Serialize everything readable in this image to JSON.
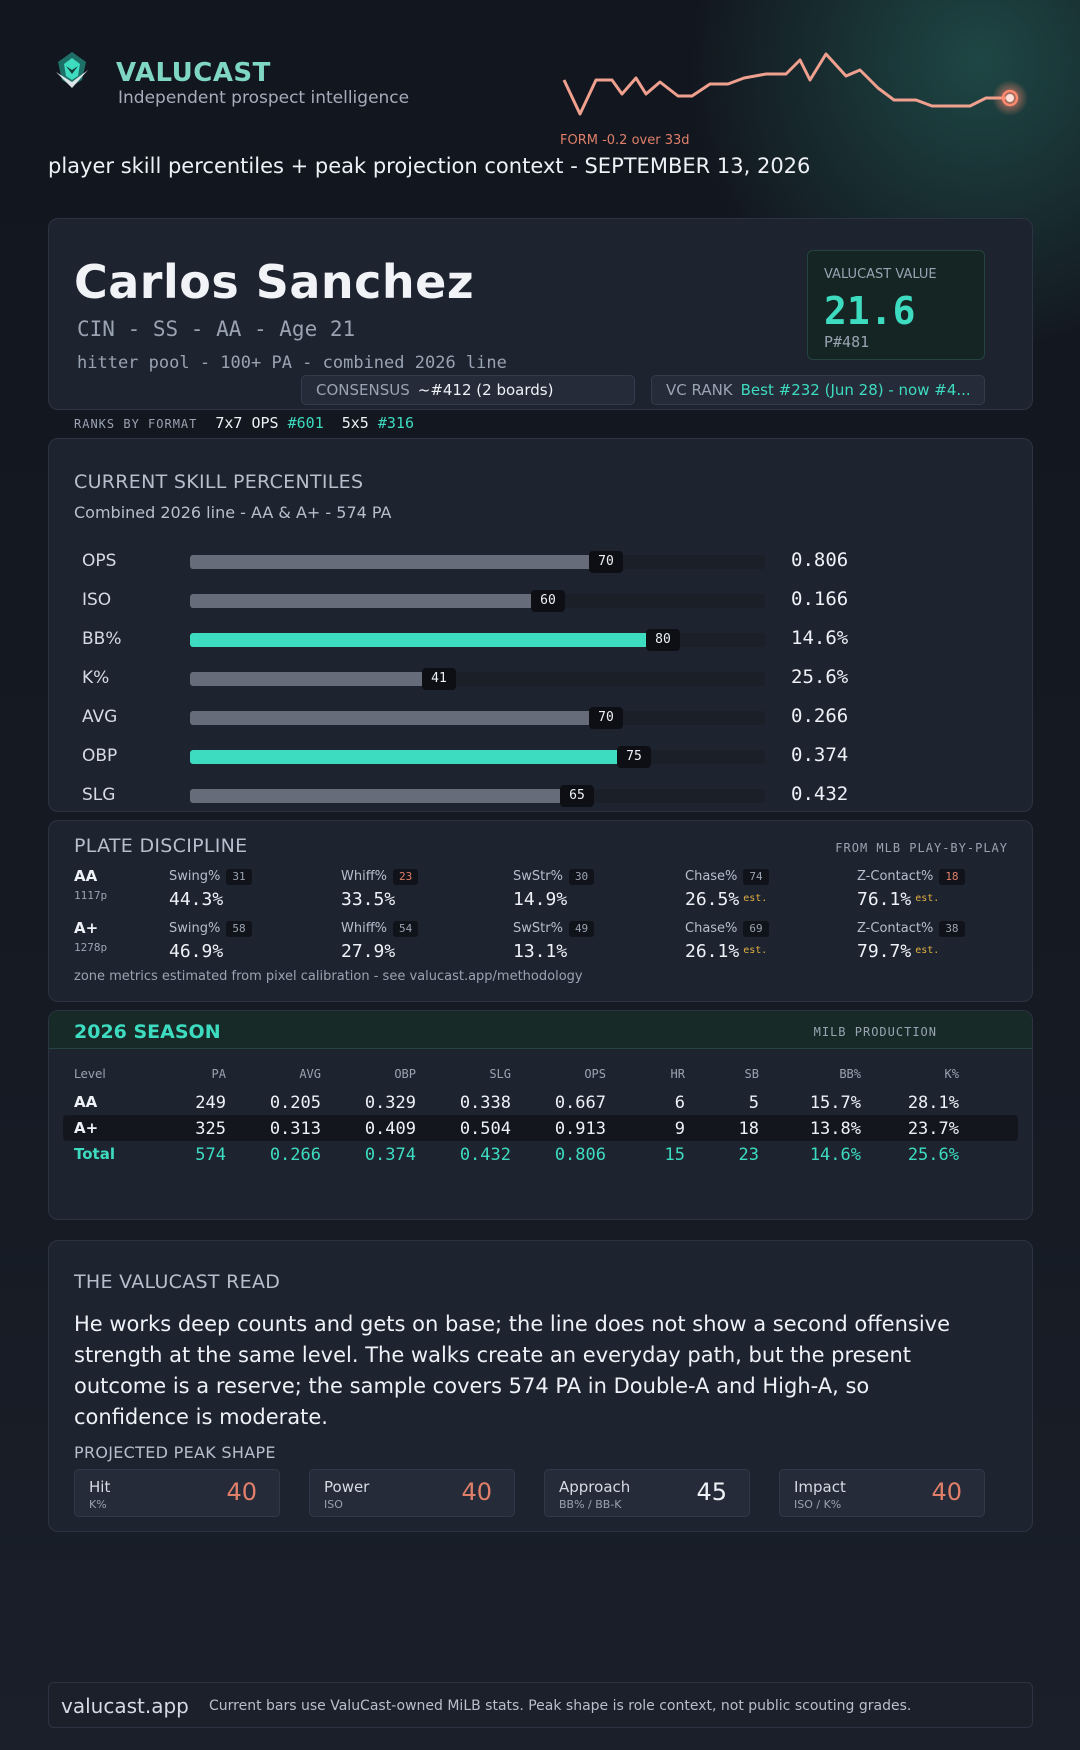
{
  "colors": {
    "accent": "#3ddcc0",
    "warn": "#e07f6a",
    "est": "#e0b040",
    "bar_neutral": "#666c7a"
  },
  "header": {
    "brand": "VALUCAST",
    "tagline": "Independent prospect intelligence",
    "form_label": "FORM  -0.2 over 33d",
    "subtitle": "player skill percentiles + peak projection context - SEPTEMBER 13, 2026"
  },
  "player": {
    "name": "Carlos Sanchez",
    "meta": "CIN - SS - AA - Age 21",
    "pool": "hitter pool - 100+ PA - combined 2026 line",
    "value_label": "VALUCAST VALUE",
    "value": "21.6",
    "value_rank": "P#481",
    "consensus_label": "CONSENSUS",
    "consensus_value": "~#412 (2 boards)",
    "vcrank_label": "VC RANK",
    "vcrank_value": "Best #232 (Jun 28) - now #4..."
  },
  "ranks": {
    "label": "RANKS BY FORMAT",
    "f1_label": "7x7 OPS",
    "f1_value": "#601",
    "f2_label": "5x5",
    "f2_value": "#316"
  },
  "skills": {
    "title": "CURRENT SKILL PERCENTILES",
    "subtitle": "Combined 2026 line - AA & A+ - 574 PA",
    "rows": [
      {
        "label": "OPS",
        "pct": 70,
        "badge": "70",
        "value": "0.806",
        "highlight": false
      },
      {
        "label": "ISO",
        "pct": 60,
        "badge": "60",
        "value": "0.166",
        "highlight": false
      },
      {
        "label": "BB%",
        "pct": 80,
        "badge": "80",
        "value": "14.6%",
        "highlight": true
      },
      {
        "label": "K%",
        "pct": 41,
        "badge": "41",
        "value": "25.6%",
        "highlight": false
      },
      {
        "label": "AVG",
        "pct": 70,
        "badge": "70",
        "value": "0.266",
        "highlight": false
      },
      {
        "label": "OBP",
        "pct": 75,
        "badge": "75",
        "value": "0.374",
        "highlight": true
      },
      {
        "label": "SLG",
        "pct": 65,
        "badge": "65",
        "value": "0.432",
        "highlight": false
      }
    ]
  },
  "plate": {
    "title": "PLATE DISCIPLINE",
    "source": "FROM MLB PLAY-BY-PLAY",
    "footnote": "zone metrics estimated from pixel calibration - see valucast.app/methodology",
    "est_label": "est.",
    "levels": [
      {
        "level": "AA",
        "pitches": "1117p",
        "metrics": [
          {
            "name": "Swing%",
            "pct": "31",
            "value": "44.3%",
            "bad": false,
            "est": false
          },
          {
            "name": "Whiff%",
            "pct": "23",
            "value": "33.5%",
            "bad": true,
            "est": false
          },
          {
            "name": "SwStr%",
            "pct": "30",
            "value": "14.9%",
            "bad": false,
            "est": false
          },
          {
            "name": "Chase%",
            "pct": "74",
            "value": "26.5%",
            "bad": false,
            "est": true
          },
          {
            "name": "Z-Contact%",
            "pct": "18",
            "value": "76.1%",
            "bad": true,
            "est": true
          }
        ]
      },
      {
        "level": "A+",
        "pitches": "1278p",
        "metrics": [
          {
            "name": "Swing%",
            "pct": "58",
            "value": "46.9%",
            "bad": false,
            "est": false
          },
          {
            "name": "Whiff%",
            "pct": "54",
            "value": "27.9%",
            "bad": false,
            "est": false
          },
          {
            "name": "SwStr%",
            "pct": "49",
            "value": "13.1%",
            "bad": false,
            "est": false
          },
          {
            "name": "Chase%",
            "pct": "69",
            "value": "26.1%",
            "bad": false,
            "est": true
          },
          {
            "name": "Z-Contact%",
            "pct": "38",
            "value": "79.7%",
            "bad": false,
            "est": true
          }
        ]
      }
    ]
  },
  "season": {
    "title": "2026 SEASON",
    "source": "MILB PRODUCTION",
    "headers": [
      "Level",
      "PA",
      "AVG",
      "OBP",
      "SLG",
      "OPS",
      "HR",
      "SB",
      "BB%",
      "K%"
    ],
    "rows": [
      [
        "AA",
        "249",
        "0.205",
        "0.329",
        "0.338",
        "0.667",
        "6",
        "5",
        "15.7%",
        "28.1%"
      ],
      [
        "A+",
        "325",
        "0.313",
        "0.409",
        "0.504",
        "0.913",
        "9",
        "18",
        "13.8%",
        "23.7%"
      ],
      [
        "Total",
        "574",
        "0.266",
        "0.374",
        "0.432",
        "0.806",
        "15",
        "23",
        "14.6%",
        "25.6%"
      ]
    ]
  },
  "read": {
    "title": "THE VALUCAST READ",
    "text": "He works deep counts and gets on base; the line does not show a second offensive strength at the same level. The walks create an everyday path, but the present outcome is a reserve; the sample covers 574 PA in Double-A and High-A, so confidence is moderate.",
    "peak_title": "PROJECTED PEAK SHAPE",
    "peaks": [
      {
        "name": "Hit",
        "sub": "K%",
        "score": "40",
        "neutral": false
      },
      {
        "name": "Power",
        "sub": "ISO",
        "score": "40",
        "neutral": false
      },
      {
        "name": "Approach",
        "sub": "BB% / BB-K",
        "score": "45",
        "neutral": true
      },
      {
        "name": "Impact",
        "sub": "ISO / K%",
        "score": "40",
        "neutral": false
      }
    ]
  },
  "footer": {
    "brand": "valucast.app",
    "note": "Current bars use ValuCast-owned MiLB stats. Peak shape is role context, not public scouting grades."
  }
}
